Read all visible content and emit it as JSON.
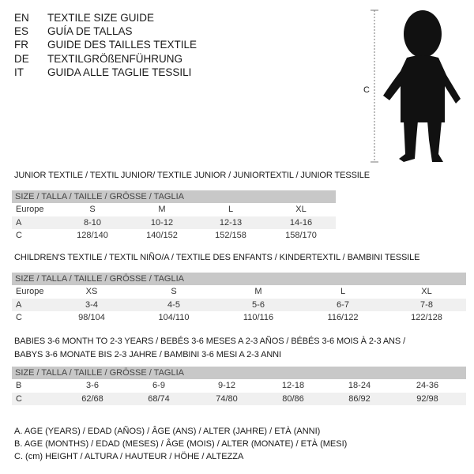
{
  "languages": [
    {
      "code": "EN",
      "title": "TEXTILE SIZE GUIDE"
    },
    {
      "code": "ES",
      "title": "GUÍA DE TALLAS"
    },
    {
      "code": "FR",
      "title": "GUIDE DES TAILLES TEXTILE"
    },
    {
      "code": "DE",
      "title": "TEXTILGRÖßENFÜHRUNG"
    },
    {
      "code": "IT",
      "title": "GUIDA ALLE TAGLIE TESSILI"
    }
  ],
  "figure": {
    "measure_label": "C"
  },
  "size_header": "SIZE / TALLA / TAILLE / GRÖSSE / TAGLIA",
  "junior": {
    "heading": "JUNIOR TEXTILE / TEXTIL JUNIOR/ TEXTILE JUNIOR / JUNIORTEXTIL / JUNIOR TESSILE",
    "rows": [
      {
        "label": "Europe",
        "values": [
          "S",
          "M",
          "L",
          "XL"
        ]
      },
      {
        "label": "A",
        "values": [
          "8-10",
          "10-12",
          "12-13",
          "14-16"
        ]
      },
      {
        "label": "C",
        "values": [
          "128/140",
          "140/152",
          "152/158",
          "158/170"
        ]
      }
    ]
  },
  "children": {
    "heading": "CHILDREN'S TEXTILE / TEXTIL NIÑO/A / TEXTILE DES ENFANTS / KINDERTEXTIL / BAMBINI TESSILE",
    "rows": [
      {
        "label": "Europe",
        "values": [
          "XS",
          "S",
          "M",
          "L",
          "XL"
        ]
      },
      {
        "label": "A",
        "values": [
          "3-4",
          "4-5",
          "5-6",
          "6-7",
          "7-8"
        ]
      },
      {
        "label": "C",
        "values": [
          "98/104",
          "104/110",
          "110/116",
          "116/122",
          "122/128"
        ]
      }
    ]
  },
  "babies": {
    "heading_line1": "BABIES 3-6 MONTH TO 2-3 YEARS / BEBÉS 3-6 MESES A 2-3 AÑOS / BÉBÉS 3-6 MOIS À 2-3 ANS /",
    "heading_line2": "BABYS 3-6 MONATE BIS 2-3 JAHRE / BAMBINI 3-6 MESI A 2-3 ANNI",
    "rows": [
      {
        "label": "B",
        "values": [
          "3-6",
          "6-9",
          "9-12",
          "12-18",
          "18-24",
          "24-36"
        ]
      },
      {
        "label": "C",
        "values": [
          "62/68",
          "68/74",
          "74/80",
          "80/86",
          "86/92",
          "92/98"
        ]
      }
    ]
  },
  "notes": [
    "A. AGE (YEARS) / EDAD (AÑOS) / ÂGE (ANS) / ALTER (JAHRE) / ETÀ (ANNI)",
    "B. AGE (MONTHS) / EDAD (MESES) / ÂGE (MOIS) / ALTER (MONATE) / ETÀ (MESI)",
    "C. (cm) HEIGHT / ALTURA / HAUTEUR / HÖHE / ALTEZZA"
  ]
}
